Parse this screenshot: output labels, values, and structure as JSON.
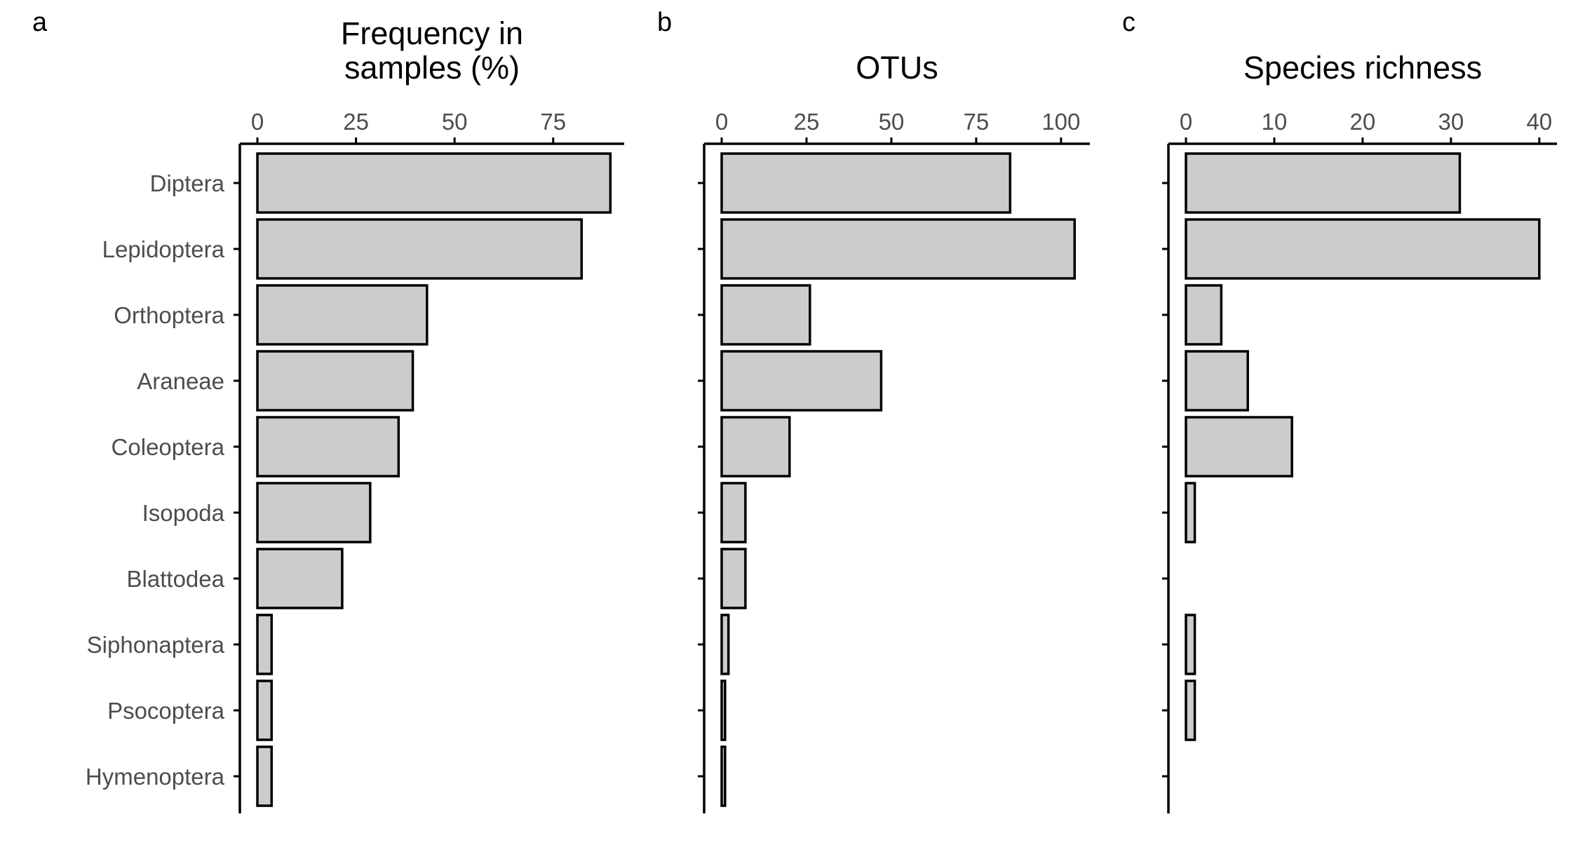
{
  "chart_data": [
    {
      "type": "bar",
      "orientation": "horizontal",
      "panel_letter": "a",
      "title_lines": [
        "Frequency in",
        "samples (%)"
      ],
      "x_axis_position": "top",
      "xlim": [
        0,
        93
      ],
      "xticks": [
        0,
        25,
        50,
        75
      ],
      "categories": [
        "Diptera",
        "Lepidoptera",
        "Orthoptera",
        "Araneae",
        "Coleoptera",
        "Isopoda",
        "Blattodea",
        "Siphonaptera",
        "Psocoptera",
        "Hymenoptera"
      ],
      "values": [
        89.5,
        82.2,
        43,
        39.4,
        35.8,
        28.6,
        21.5,
        3.6,
        3.6,
        3.6
      ],
      "grid": false,
      "legend": "none"
    },
    {
      "type": "bar",
      "orientation": "horizontal",
      "panel_letter": "b",
      "title_lines": [
        "OTUs"
      ],
      "x_axis_position": "top",
      "xlim": [
        0,
        108.5
      ],
      "xticks": [
        0,
        25,
        50,
        75,
        100
      ],
      "categories": [
        "Diptera",
        "Lepidoptera",
        "Orthoptera",
        "Araneae",
        "Coleoptera",
        "Isopoda",
        "Blattodea",
        "Siphonaptera",
        "Psocoptera",
        "Hymenoptera"
      ],
      "values": [
        85,
        104,
        26,
        47,
        20,
        7,
        7,
        2,
        1,
        1
      ],
      "grid": false,
      "legend": "none"
    },
    {
      "type": "bar",
      "orientation": "horizontal",
      "panel_letter": "c",
      "title_lines": [
        "Species richness"
      ],
      "x_axis_position": "top",
      "xlim": [
        0,
        42
      ],
      "xticks": [
        0,
        10,
        20,
        30,
        40
      ],
      "categories": [
        "Diptera",
        "Lepidoptera",
        "Orthoptera",
        "Araneae",
        "Coleoptera",
        "Isopoda",
        "Blattodea",
        "Siphonaptera",
        "Psocoptera",
        "Hymenoptera"
      ],
      "values": [
        31,
        40,
        4,
        7,
        12,
        1,
        0,
        1,
        1,
        0
      ],
      "grid": false,
      "legend": "none"
    }
  ]
}
